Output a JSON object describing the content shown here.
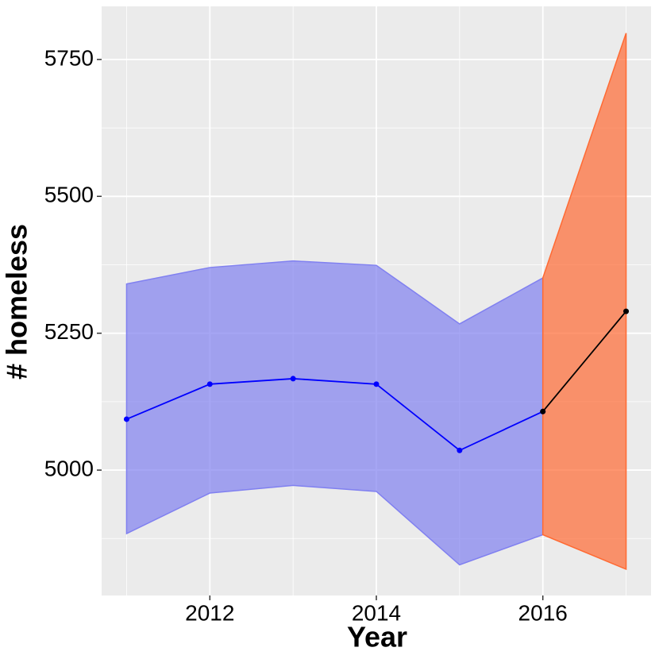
{
  "chart_data": {
    "type": "line-band",
    "x_label": "Year",
    "y_label": "# homeless",
    "xlim": [
      2010.7,
      2017.3
    ],
    "xticks": [
      2012,
      2014,
      2016
    ],
    "ylim": [
      4771,
      5847
    ],
    "yticks": [
      5000,
      5250,
      5500,
      5750
    ],
    "x_minor_grid": [
      2011,
      2013,
      2015,
      2017
    ],
    "y_minor_grid": [
      4875,
      5125,
      5375,
      5625
    ],
    "grid": true,
    "series": [
      {
        "color": "#0000ff",
        "band_color": "#8080f0",
        "x": [
          2011,
          2012,
          2013,
          2014,
          2015,
          2016
        ],
        "values": [
          5093,
          5157,
          5167,
          5157,
          5036,
          5107
        ],
        "lower": [
          4884,
          4958,
          4972,
          4961,
          4827,
          4882
        ],
        "upper": [
          5340,
          5370,
          5382,
          5374,
          5267,
          5351
        ]
      },
      {
        "color": "#000000",
        "band_color": "#ff6a33",
        "x": [
          2016,
          2017
        ],
        "values": [
          5107,
          5290
        ],
        "lower": [
          4882,
          4819
        ],
        "upper": [
          5351,
          5798
        ]
      }
    ]
  }
}
